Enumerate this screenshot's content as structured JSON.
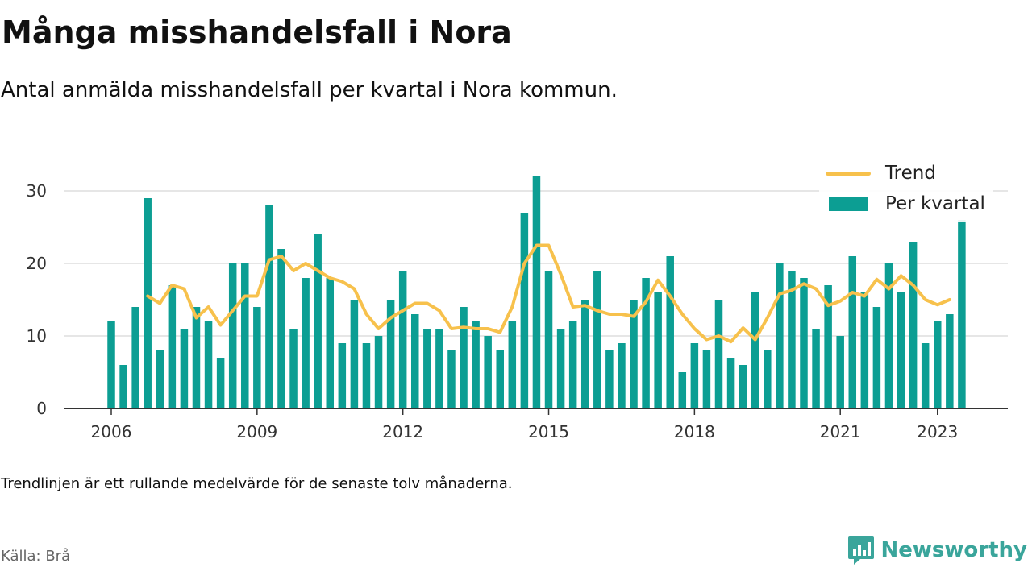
{
  "title": "Många misshandelsfall i Nora",
  "subtitle": "Antal anmälda misshandelsfall per kvartal i Nora kommun.",
  "note": "Trendlinjen är ett rullande medelvärde för de senaste tolv månaderna.",
  "source": "Källa: Brå",
  "brand": {
    "name": "Newsworthy",
    "icon": "newsworthy-chart-icon",
    "color": "#3aa59b"
  },
  "colors": {
    "bars": "#0c9e93",
    "trend": "#f7c14c",
    "axis": "#333333",
    "grid": "#dddddd"
  },
  "legend": {
    "position": "top-right",
    "trend_label": "Trend",
    "bars_label": "Per kvartal"
  },
  "chart_data": {
    "type": "bar",
    "x_unit": "quarter",
    "start_quarter": "2006-Q1",
    "x_ticks": [
      "2006",
      "2009",
      "2012",
      "2015",
      "2018",
      "2021",
      "2023"
    ],
    "y_ticks": [
      0,
      10,
      20,
      30
    ],
    "ylim": [
      0,
      32
    ],
    "grid": true,
    "series": [
      {
        "name": "Per kvartal",
        "kind": "bar",
        "values": [
          12,
          6,
          14,
          29,
          8,
          17,
          11,
          14,
          12,
          7,
          20,
          20,
          14,
          28,
          22,
          11,
          18,
          24,
          18,
          9,
          15,
          9,
          10,
          15,
          19,
          13,
          11,
          11,
          8,
          14,
          12,
          10,
          8,
          12,
          27,
          32,
          19,
          11,
          12,
          15,
          19,
          8,
          9,
          15,
          18,
          16,
          21,
          5,
          9,
          8,
          15,
          7,
          6,
          16,
          8,
          20,
          19,
          18,
          11,
          17,
          10,
          21,
          16,
          14,
          20,
          16,
          23,
          9,
          12,
          13,
          26
        ]
      },
      {
        "name": "Trend",
        "kind": "line",
        "start_index": 3,
        "values": [
          15.5,
          14.5,
          17,
          16.5,
          12.5,
          14,
          11.5,
          13.5,
          15.5,
          15.5,
          20.5,
          21,
          19,
          20,
          19,
          18,
          17.5,
          16.5,
          13,
          11,
          12.5,
          13.5,
          14.5,
          14.5,
          13.5,
          11,
          11.2,
          11,
          11,
          10.5,
          14,
          20,
          22.5,
          22.5,
          18.5,
          14,
          14.2,
          13.5,
          13,
          13,
          12.7,
          14.7,
          17.7,
          15.5,
          13,
          11,
          9.5,
          10,
          9.2,
          11.1,
          9.5,
          12.5,
          15.8,
          16.3,
          17.2,
          16.5,
          14.2,
          14.8,
          16,
          15.5,
          17.8,
          16.5,
          18.3,
          17,
          15,
          14.3,
          15
        ]
      }
    ]
  }
}
